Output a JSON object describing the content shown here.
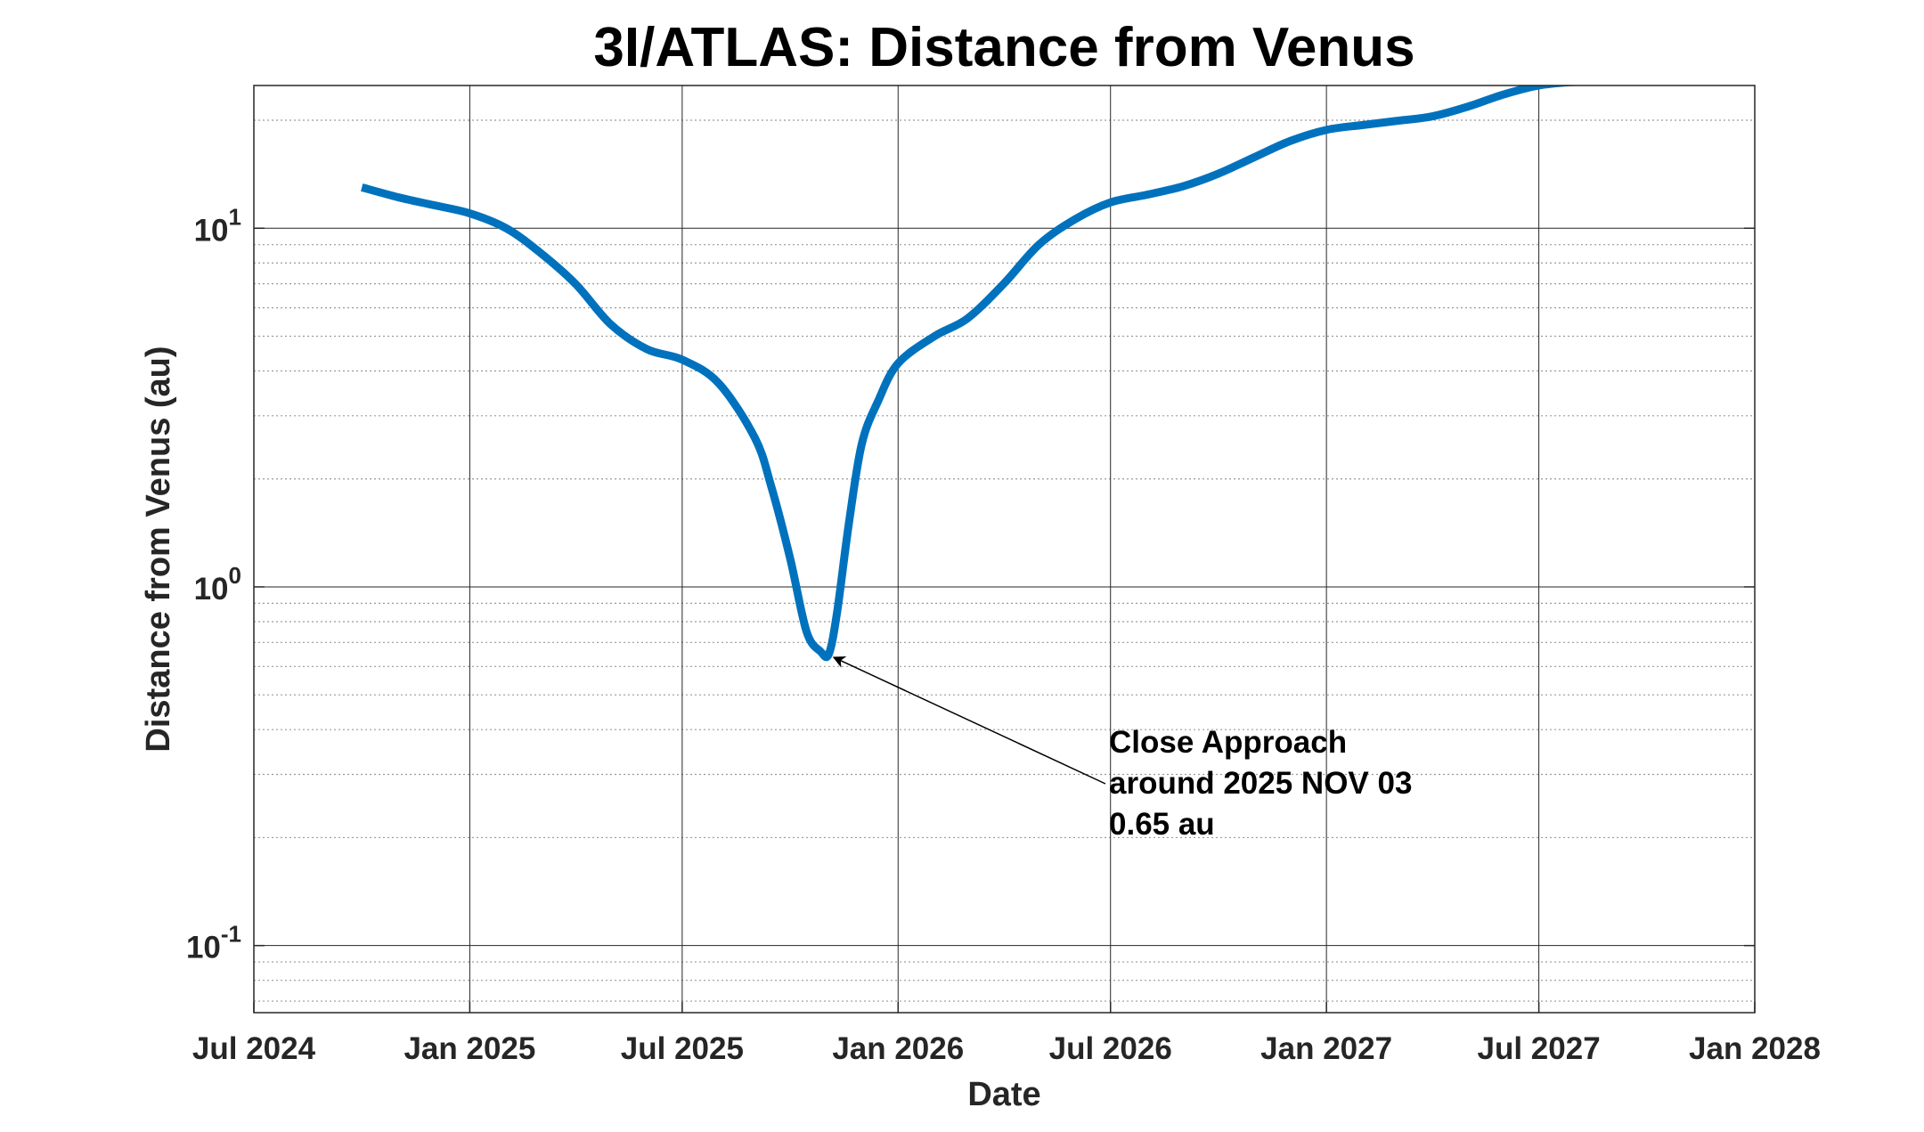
{
  "chart_data": {
    "type": "line",
    "title": "3I/ATLAS: Distance from Venus",
    "xlabel": "Date",
    "ylabel": "Distance from Venus (au)",
    "y_scale": "log",
    "ylim": [
      0.065,
      25
    ],
    "xlim": [
      "2024-07-01",
      "2028-01-01"
    ],
    "grid": true,
    "minor_grid": true,
    "x_ticks": [
      {
        "date": "2024-07-01",
        "label": "Jul 2024"
      },
      {
        "date": "2025-01-01",
        "label": "Jan 2025"
      },
      {
        "date": "2025-07-01",
        "label": "Jul 2025"
      },
      {
        "date": "2026-01-01",
        "label": "Jan 2026"
      },
      {
        "date": "2026-07-01",
        "label": "Jul 2026"
      },
      {
        "date": "2027-01-01",
        "label": "Jan 2027"
      },
      {
        "date": "2027-07-01",
        "label": "Jul 2027"
      },
      {
        "date": "2028-01-01",
        "label": "Jan 2028"
      }
    ],
    "y_ticks": [
      {
        "value": 0.1,
        "base": "10",
        "exponent": "-1"
      },
      {
        "value": 1,
        "base": "10",
        "exponent": "0"
      },
      {
        "value": 10,
        "base": "10",
        "exponent": "1"
      }
    ],
    "series": [
      {
        "color": "#0072BD",
        "x": [
          "2024-10-01",
          "2024-11-01",
          "2024-12-01",
          "2025-01-01",
          "2025-02-01",
          "2025-03-01",
          "2025-04-01",
          "2025-05-01",
          "2025-06-01",
          "2025-07-01",
          "2025-08-01",
          "2025-09-01",
          "2025-09-15",
          "2025-10-01",
          "2025-10-15",
          "2025-10-27",
          "2025-11-03",
          "2025-11-10",
          "2025-11-20",
          "2025-12-01",
          "2025-12-15",
          "2026-01-01",
          "2026-02-01",
          "2026-03-01",
          "2026-04-01",
          "2026-05-01",
          "2026-06-01",
          "2026-07-01",
          "2026-08-01",
          "2026-09-01",
          "2026-10-01",
          "2026-11-01",
          "2026-12-01",
          "2027-01-01",
          "2027-02-01",
          "2027-03-01",
          "2027-04-01",
          "2027-05-01",
          "2027-06-01",
          "2027-07-01",
          "2027-08-01",
          "2027-09-01",
          "2027-10-01"
        ],
        "y": [
          13.0,
          12.2,
          11.6,
          11.0,
          10.0,
          8.6,
          7.0,
          5.4,
          4.6,
          4.3,
          3.7,
          2.6,
          1.9,
          1.2,
          0.75,
          0.66,
          0.65,
          0.85,
          1.5,
          2.5,
          3.3,
          4.2,
          5.0,
          5.6,
          7.0,
          9.0,
          10.6,
          11.8,
          12.4,
          13.1,
          14.2,
          15.8,
          17.5,
          18.8,
          19.4,
          19.9,
          20.5,
          21.8,
          23.6,
          25.0,
          25.6,
          25.9,
          26.0
        ]
      }
    ],
    "annotation": {
      "lines": [
        "Close Approach",
        "around 2025 NOV 03",
        "0.65 au"
      ],
      "point": {
        "x": "2025-11-03",
        "y": 0.65
      }
    }
  }
}
